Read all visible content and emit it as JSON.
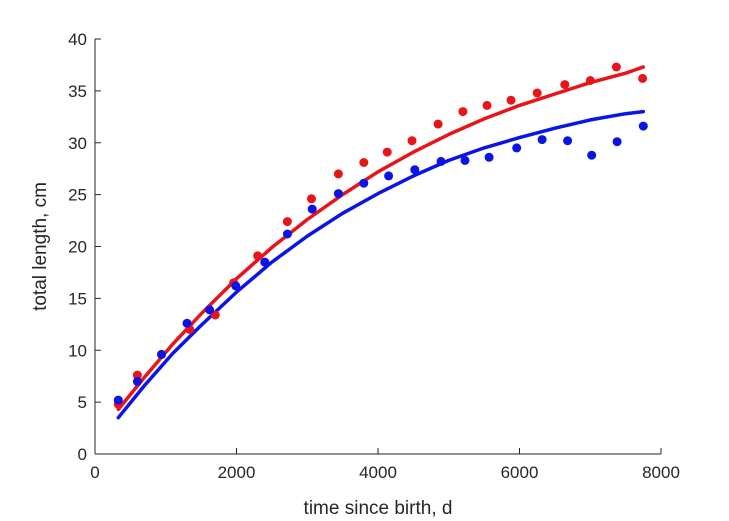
{
  "chart_data": {
    "type": "scatter",
    "title": "",
    "xlabel": "time since birth, d",
    "ylabel": "total length, cm",
    "xlim": [
      0,
      8000
    ],
    "ylim": [
      0,
      40
    ],
    "xticks": [
      0,
      2000,
      4000,
      6000,
      8000
    ],
    "yticks": [
      0,
      5,
      10,
      15,
      20,
      25,
      30,
      35,
      40
    ],
    "grid": false,
    "legend": "none",
    "series": [
      {
        "color": "#e8141a",
        "points": {
          "x": [
            330,
            600,
            940,
            1340,
            1700,
            1960,
            2300,
            2720,
            3060,
            3440,
            3800,
            4130,
            4480,
            4850,
            5200,
            5540,
            5880,
            6250,
            6640,
            7000,
            7370,
            7740
          ],
          "y": [
            4.8,
            7.6,
            9.6,
            12.0,
            13.4,
            16.5,
            19.1,
            22.4,
            24.6,
            27.0,
            28.1,
            29.1,
            30.2,
            31.8,
            33.0,
            33.6,
            34.1,
            34.8,
            35.6,
            36.0,
            37.3,
            36.2
          ]
        },
        "fit": {
          "x": [
            330,
            700,
            1100,
            1500,
            2000,
            2500,
            3000,
            3500,
            4000,
            4500,
            5000,
            5500,
            6000,
            6500,
            7000,
            7500,
            7750
          ],
          "y": [
            4.3,
            7.4,
            10.6,
            13.5,
            16.9,
            19.9,
            22.6,
            25.0,
            27.2,
            29.1,
            30.8,
            32.3,
            33.6,
            34.7,
            35.8,
            36.7,
            37.3
          ]
        }
      },
      {
        "color": "#0a14e6",
        "points": {
          "x": [
            330,
            600,
            940,
            1300,
            1620,
            1990,
            2400,
            2720,
            3070,
            3440,
            3800,
            4150,
            4520,
            4890,
            5230,
            5570,
            5960,
            6320,
            6680,
            7020,
            7380,
            7750
          ],
          "y": [
            5.2,
            7.0,
            9.6,
            12.6,
            13.9,
            16.2,
            18.5,
            21.2,
            23.6,
            25.1,
            26.1,
            26.8,
            27.4,
            28.2,
            28.3,
            28.6,
            29.5,
            30.3,
            30.2,
            28.8,
            30.1,
            31.6
          ]
        },
        "fit": {
          "x": [
            330,
            700,
            1100,
            1500,
            2000,
            2500,
            3000,
            3500,
            4000,
            4500,
            5000,
            5500,
            6000,
            6500,
            7000,
            7500,
            7750
          ],
          "y": [
            3.5,
            6.6,
            9.7,
            12.4,
            15.6,
            18.5,
            21.0,
            23.2,
            25.1,
            26.8,
            28.3,
            29.5,
            30.5,
            31.4,
            32.2,
            32.8,
            33.0
          ]
        }
      }
    ]
  }
}
